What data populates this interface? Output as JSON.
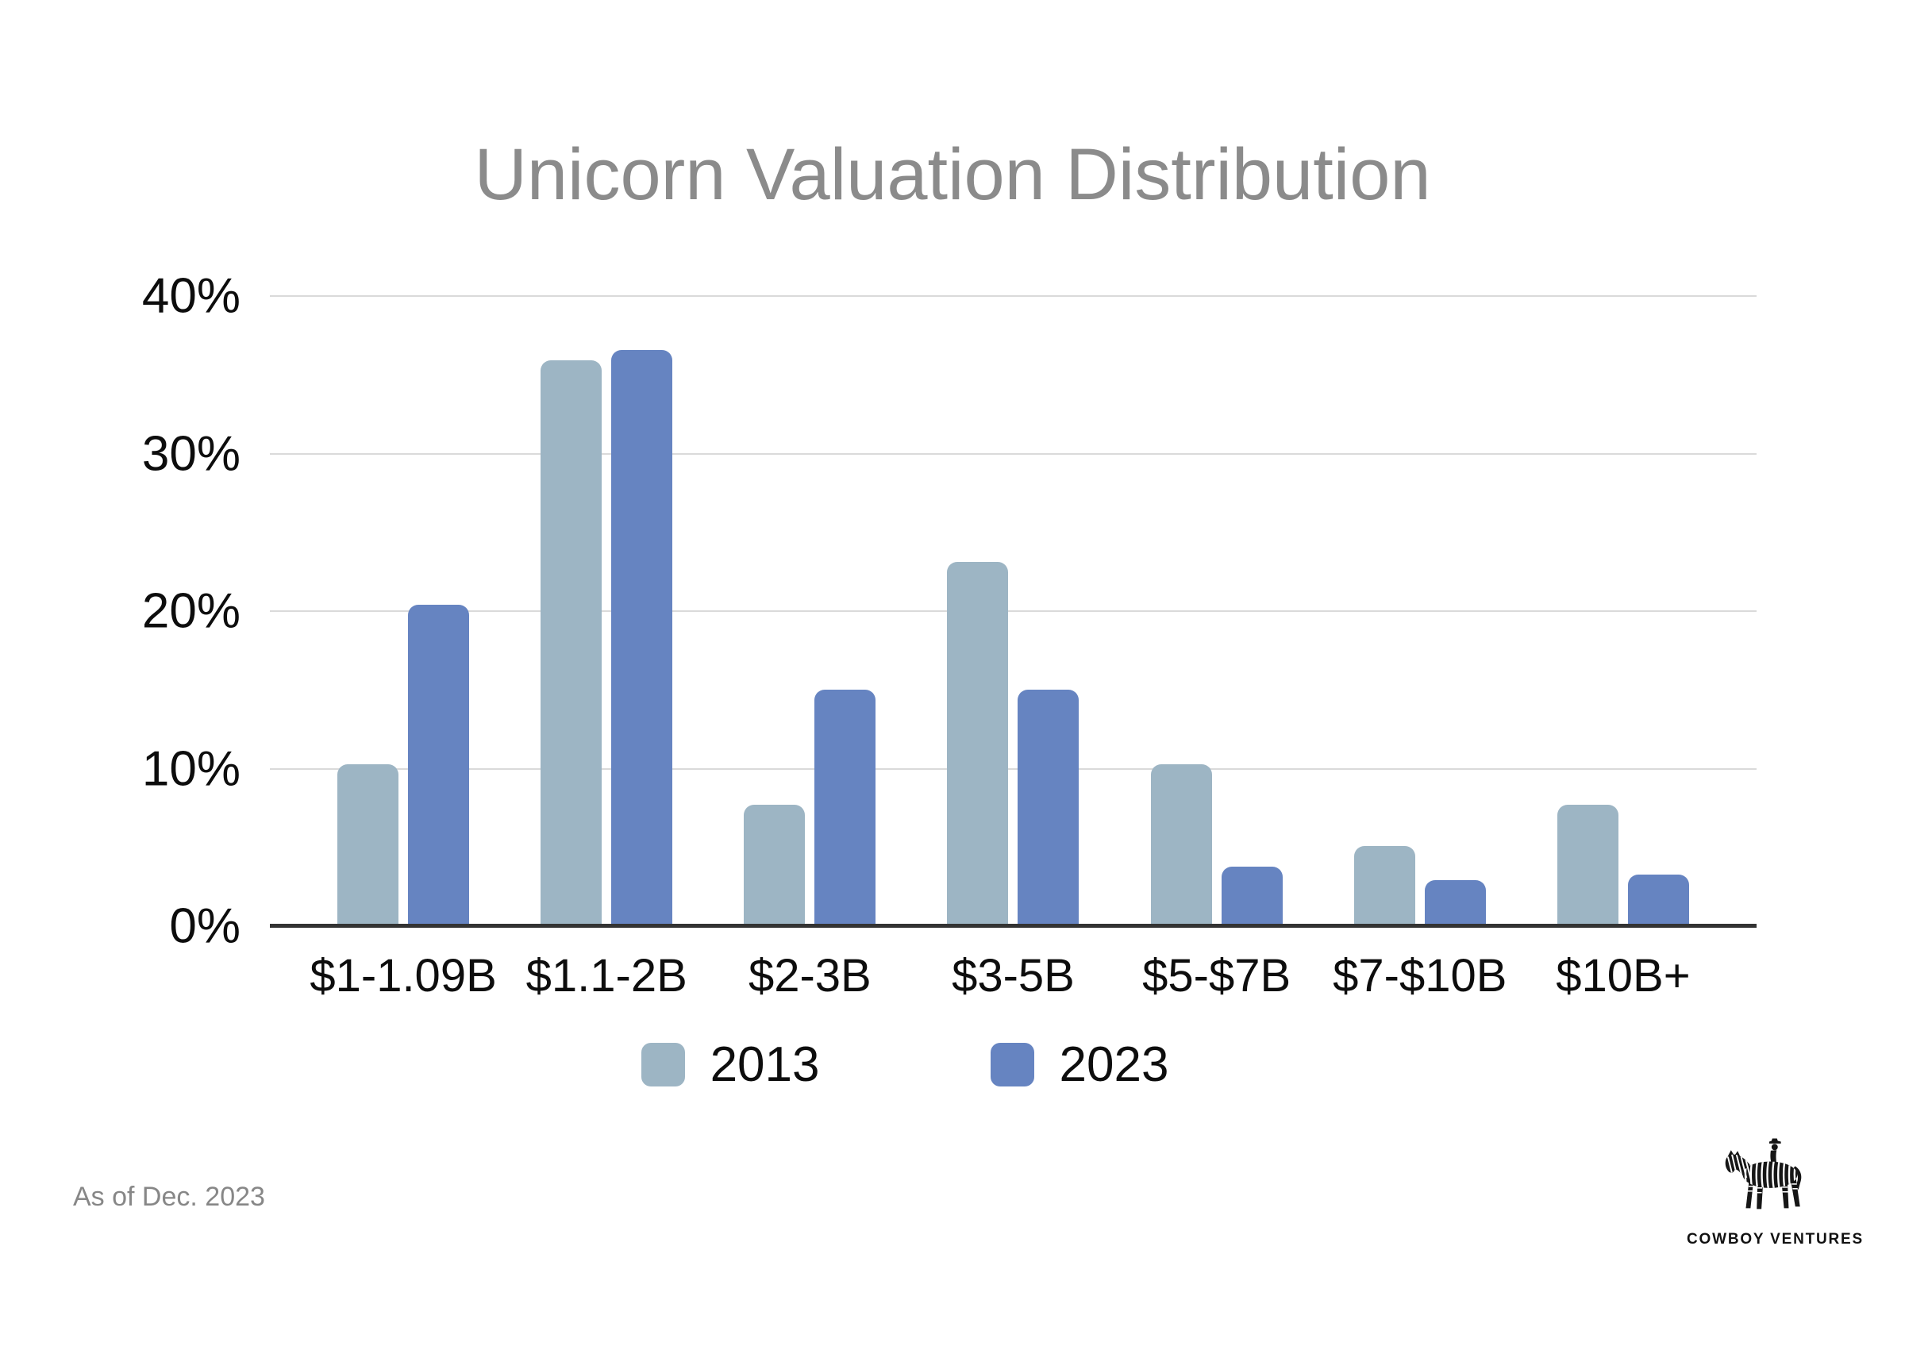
{
  "footnote": {
    "text": "As of Dec. 2023"
  },
  "logo": {
    "text": "COWBOY VENTURES",
    "icon": "zebra-with-cowboy-rider"
  },
  "colors": {
    "series_2013": "#9db5c4",
    "series_2023": "#6684c1",
    "title_text": "#8b8b8b",
    "gridline": "#dadada",
    "axis_line": "#333333",
    "tick_text": "#0d0d0d",
    "footnote_text": "#878787",
    "background": "#ffffff"
  },
  "chart_data": {
    "type": "bar",
    "title": "Unicorn Valuation Distribution",
    "xlabel": "",
    "ylabel": "",
    "categories": [
      "$1-1.09B",
      "$1.1-2B",
      "$2-3B",
      "$3-5B",
      "$5-$7B",
      "$7-$10B",
      "$10B+"
    ],
    "series": [
      {
        "name": "2013",
        "color": "#9db5c4",
        "values": [
          10.3,
          35.9,
          7.7,
          23.1,
          10.3,
          5.1,
          7.7
        ]
      },
      {
        "name": "2023",
        "color": "#6684c1",
        "values": [
          20.4,
          36.6,
          15.0,
          15.0,
          3.8,
          2.9,
          3.3
        ]
      }
    ],
    "ylim": [
      0,
      40
    ],
    "y_axis_ticks": [
      {
        "value": 0,
        "label": "0%"
      },
      {
        "value": 10,
        "label": "10%"
      },
      {
        "value": 20,
        "label": "20%"
      },
      {
        "value": 30,
        "label": "30%"
      },
      {
        "value": 40,
        "label": "40%"
      }
    ],
    "grid": "horizontal",
    "legend_position": "bottom"
  }
}
